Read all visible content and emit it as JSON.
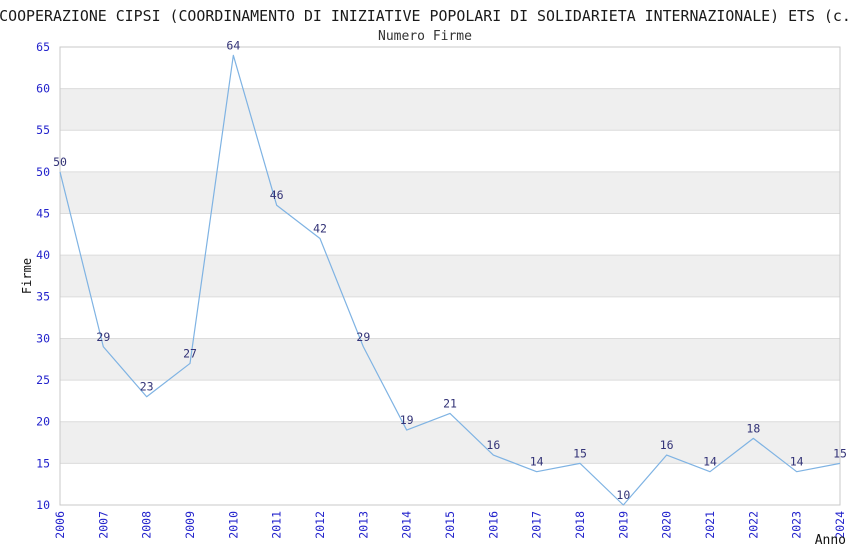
{
  "chart_data": {
    "type": "line",
    "title": "COOPERAZIONE CIPSI (COORDINAMENTO DI INIZIATIVE POPOLARI DI SOLIDARIETA INTERNAZIONALE) ETS (c.",
    "subtitle": "Numero Firme",
    "xlabel": "Anno",
    "ylabel": "Firme",
    "categories": [
      "2006",
      "2007",
      "2008",
      "2009",
      "2010",
      "2011",
      "2012",
      "2013",
      "2014",
      "2015",
      "2016",
      "2017",
      "2018",
      "2019",
      "2020",
      "2021",
      "2022",
      "2023",
      "2024"
    ],
    "values": [
      50,
      29,
      23,
      27,
      64,
      46,
      42,
      29,
      19,
      21,
      16,
      14,
      15,
      10,
      16,
      14,
      18,
      14,
      15
    ],
    "ylim": [
      10,
      65
    ],
    "ytick_step": 5,
    "yticks": [
      10,
      15,
      20,
      25,
      30,
      35,
      40,
      45,
      50,
      55,
      60,
      65
    ],
    "grid": true,
    "band_pattern": "alternating horizontal bands between ticks starting at 15-20",
    "legend": "none",
    "point_labels_visible": true,
    "colors": {
      "line": "#7fb3e3",
      "tick_label": "#2323cc",
      "point_label": "#333377",
      "grid_line": "#dcdcdc",
      "band_fill": "#efefef",
      "plot_border": "#c9c9c9",
      "title": "#1a1a1a",
      "subtitle": "#333333",
      "axis_label": "#111111"
    }
  }
}
